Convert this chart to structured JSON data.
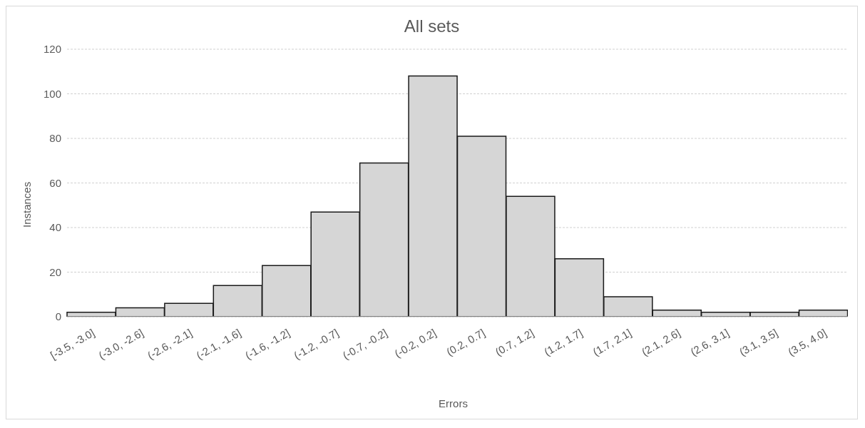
{
  "chart_data": {
    "type": "bar",
    "title": "All sets",
    "xlabel": "Errors",
    "ylabel": "Instances",
    "categories": [
      "[-3.5, -3.0]",
      "(-3.0, -2.6]",
      "(-2.6, -2.1]",
      "(-2.1, -1.6]",
      "(-1.6, -1.2]",
      "(-1.2, -0.7]",
      "(-0.7, -0.2]",
      "(-0.2, 0.2]",
      "(0.2, 0.7]",
      "(0.7, 1.2]",
      "(1.2, 1.7]",
      "(1.7, 2.1]",
      "(2.1, 2.6]",
      "(2.6, 3.1]",
      "(3.1, 3.5]",
      "(3.5, 4.0]"
    ],
    "values": [
      2,
      4,
      6,
      14,
      23,
      47,
      69,
      108,
      81,
      54,
      26,
      9,
      3,
      2,
      2,
      3
    ],
    "color": "#d6d6d6",
    "ylim": [
      0,
      120
    ],
    "yticks": [
      0,
      20,
      40,
      60,
      80,
      100,
      120
    ],
    "grid": "y"
  }
}
